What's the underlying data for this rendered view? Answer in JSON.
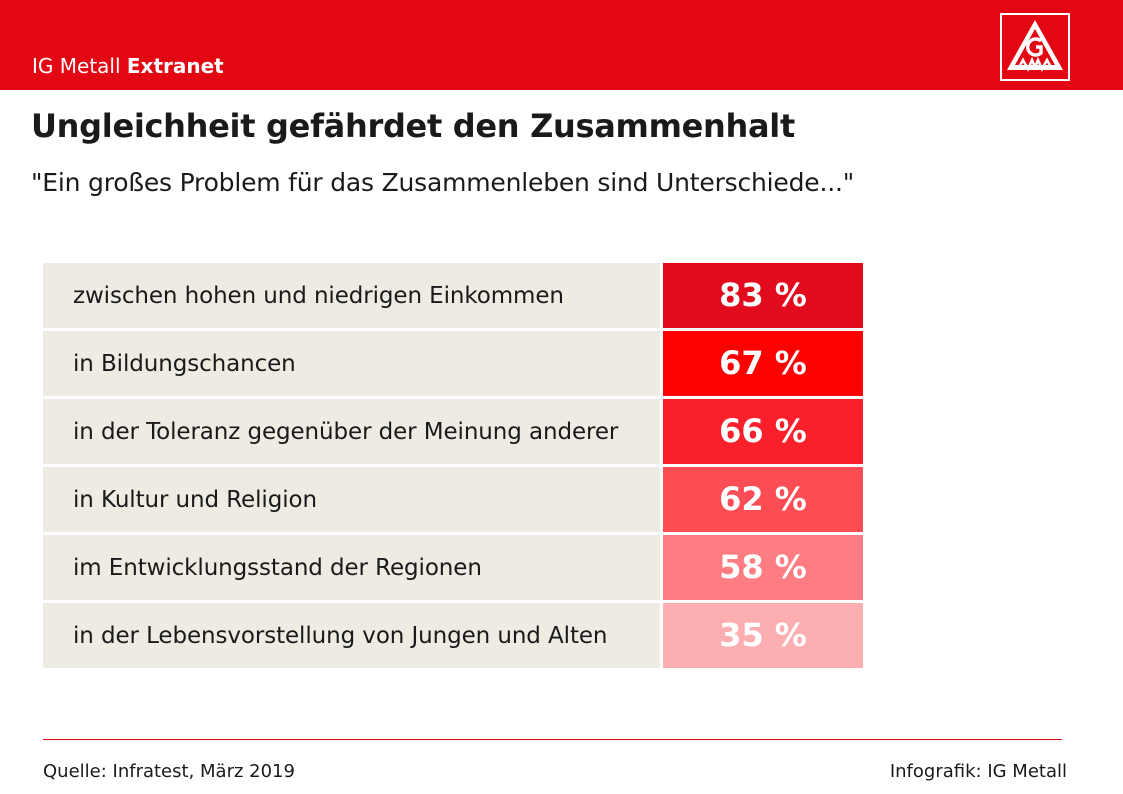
{
  "header": {
    "brand_regular": "IG Metall",
    "brand_bold": "Extranet",
    "logo_text": "IGM"
  },
  "title": "Ungleichheit gefährdet den Zusammenhalt",
  "subtitle": "\"Ein großes Problem für das Zusammenleben sind Unterschiede...\"",
  "footer": {
    "source": "Quelle: Infratest, März 2019",
    "credit": "Infografik: IG Metall"
  },
  "colors": {
    "brand_red": "#e30613",
    "label_background": "#edebe2"
  },
  "chart_data": {
    "type": "table",
    "title": "Ungleichheit gefährdet den Zusammenhalt",
    "categories": [
      "zwischen hohen und niedrigen Einkommen",
      "in Bildungschancen",
      "in der Toleranz gegenüber der Meinung anderer",
      "in Kultur und Religion",
      "im Entwicklungsstand der Regionen",
      "in der Lebensvorstellung von Jungen und Alten"
    ],
    "values": [
      83,
      67,
      66,
      62,
      58,
      35
    ],
    "value_labels": [
      "83 %",
      "67 %",
      "66 %",
      "62 %",
      "58 %",
      "35 %"
    ],
    "unit": "%",
    "cell_colors": [
      "#e20a1d",
      "#fd0000",
      "#f9202c",
      "#fb4d53",
      "#fd7d83",
      "#fdaeb0"
    ]
  }
}
